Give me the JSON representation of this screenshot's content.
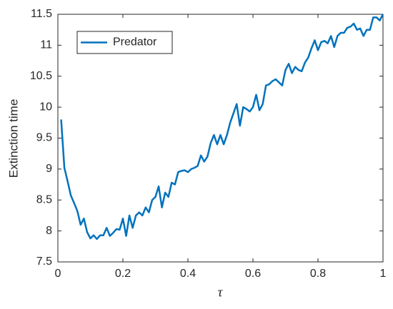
{
  "chart_data": {
    "type": "line",
    "x_label": "τ",
    "y_label": "Extinction time",
    "x": [
      0.01,
      0.02,
      0.03,
      0.04,
      0.05,
      0.06,
      0.07,
      0.08,
      0.09,
      0.1,
      0.11,
      0.12,
      0.13,
      0.14,
      0.15,
      0.16,
      0.17,
      0.18,
      0.19,
      0.2,
      0.21,
      0.22,
      0.23,
      0.24,
      0.25,
      0.26,
      0.27,
      0.28,
      0.29,
      0.3,
      0.31,
      0.32,
      0.33,
      0.34,
      0.35,
      0.36,
      0.37,
      0.38,
      0.39,
      0.4,
      0.41,
      0.42,
      0.43,
      0.44,
      0.45,
      0.46,
      0.47,
      0.48,
      0.49,
      0.5,
      0.51,
      0.52,
      0.53,
      0.54,
      0.55,
      0.56,
      0.57,
      0.58,
      0.59,
      0.6,
      0.61,
      0.62,
      0.63,
      0.64,
      0.65,
      0.66,
      0.67,
      0.68,
      0.69,
      0.7,
      0.71,
      0.72,
      0.73,
      0.74,
      0.75,
      0.76,
      0.77,
      0.78,
      0.79,
      0.8,
      0.81,
      0.82,
      0.83,
      0.84,
      0.85,
      0.86,
      0.87,
      0.88,
      0.89,
      0.9,
      0.91,
      0.92,
      0.93,
      0.94,
      0.95,
      0.96,
      0.97,
      0.98,
      0.99,
      1
    ],
    "series": [
      {
        "name": "Predator",
        "color": "#0072bd",
        "values": [
          9.8,
          9.02,
          8.8,
          8.57,
          8.45,
          8.32,
          8.1,
          8.2,
          7.98,
          7.88,
          7.93,
          7.87,
          7.93,
          7.93,
          8.05,
          7.92,
          7.97,
          8.03,
          8.02,
          8.2,
          7.92,
          8.25,
          8.05,
          8.25,
          8.3,
          8.25,
          8.38,
          8.3,
          8.5,
          8.55,
          8.72,
          8.38,
          8.62,
          8.55,
          8.78,
          8.75,
          8.95,
          8.97,
          8.98,
          8.95,
          9.0,
          9.02,
          9.05,
          9.22,
          9.12,
          9.2,
          9.42,
          9.55,
          9.4,
          9.55,
          9.4,
          9.55,
          9.75,
          9.9,
          10.05,
          9.7,
          10.0,
          9.97,
          9.93,
          10.0,
          10.2,
          9.95,
          10.05,
          10.35,
          10.37,
          10.42,
          10.45,
          10.4,
          10.35,
          10.6,
          10.7,
          10.55,
          10.65,
          10.6,
          10.58,
          10.72,
          10.8,
          10.95,
          11.08,
          10.92,
          11.05,
          11.07,
          11.03,
          11.15,
          10.97,
          11.15,
          11.2,
          11.2,
          11.28,
          11.3,
          11.35,
          11.25,
          11.27,
          11.15,
          11.25,
          11.25,
          11.45,
          11.45,
          11.4,
          11.5
        ]
      }
    ],
    "xlim": [
      0,
      1
    ],
    "xticks": [
      0,
      0.2,
      0.4,
      0.6,
      0.8,
      1
    ],
    "ylim": [
      7.5,
      11.5
    ],
    "yticks": [
      7.5,
      8,
      8.5,
      9,
      9.5,
      10,
      10.5,
      11,
      11.5
    ],
    "grid": false,
    "legend": "upper-left"
  }
}
